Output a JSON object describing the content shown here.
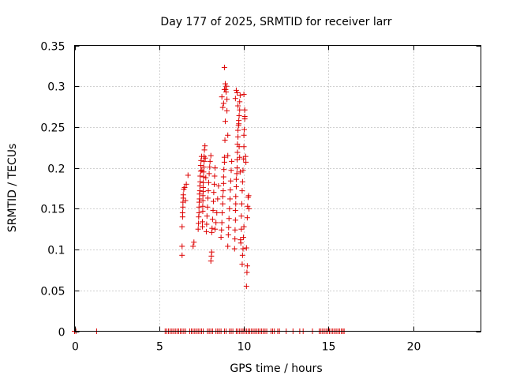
{
  "chart_data": {
    "type": "scatter",
    "title": "Day 177 of 2025, SRMTID for receiver larr",
    "xlabel": "GPS time / hours",
    "ylabel": "SRMTID / TECUs",
    "xlim": [
      0,
      24
    ],
    "ylim": [
      0,
      0.35
    ],
    "x_ticks": [
      0,
      5,
      10,
      15,
      20
    ],
    "y_ticks": [
      0,
      0.05,
      0.1,
      0.15,
      0.2,
      0.25,
      0.3,
      0.35
    ],
    "x_tick_labels": [
      "0",
      "5",
      "10",
      "15",
      "20"
    ],
    "y_tick_labels": [
      "0",
      "0.05",
      "0.1",
      "0.15",
      "0.2",
      "0.25",
      "0.3",
      "0.35"
    ],
    "grid": true,
    "marker": "+",
    "marker_color": "#dd0000",
    "series": [
      {
        "name": "SRMTID",
        "points": [
          [
            0.0,
            0
          ],
          [
            0.08,
            0
          ],
          [
            1.3,
            0
          ],
          [
            5.35,
            0
          ],
          [
            5.45,
            0
          ],
          [
            5.55,
            0
          ],
          [
            5.65,
            0
          ],
          [
            5.75,
            0
          ],
          [
            5.85,
            0
          ],
          [
            5.95,
            0
          ],
          [
            6.05,
            0
          ],
          [
            6.15,
            0
          ],
          [
            6.25,
            0
          ],
          [
            6.35,
            0
          ],
          [
            6.45,
            0
          ],
          [
            6.55,
            0
          ],
          [
            6.8,
            0
          ],
          [
            6.9,
            0
          ],
          [
            7.0,
            0
          ],
          [
            7.1,
            0
          ],
          [
            7.2,
            0
          ],
          [
            7.3,
            0
          ],
          [
            7.4,
            0
          ],
          [
            7.5,
            0
          ],
          [
            7.6,
            0
          ],
          [
            7.85,
            0
          ],
          [
            7.95,
            0
          ],
          [
            8.05,
            0
          ],
          [
            8.15,
            0
          ],
          [
            8.35,
            0
          ],
          [
            8.45,
            0
          ],
          [
            8.55,
            0
          ],
          [
            8.65,
            0
          ],
          [
            8.85,
            0
          ],
          [
            8.95,
            0
          ],
          [
            9.15,
            0
          ],
          [
            9.25,
            0
          ],
          [
            9.35,
            0
          ],
          [
            9.55,
            0
          ],
          [
            9.65,
            0
          ],
          [
            9.75,
            0
          ],
          [
            9.85,
            0
          ],
          [
            9.95,
            0
          ],
          [
            10.05,
            0
          ],
          [
            10.15,
            0
          ],
          [
            10.25,
            0
          ],
          [
            10.35,
            0
          ],
          [
            10.45,
            0
          ],
          [
            10.55,
            0
          ],
          [
            10.65,
            0
          ],
          [
            10.75,
            0
          ],
          [
            10.85,
            0
          ],
          [
            10.95,
            0
          ],
          [
            11.05,
            0
          ],
          [
            11.15,
            0
          ],
          [
            11.25,
            0
          ],
          [
            11.35,
            0
          ],
          [
            11.6,
            0
          ],
          [
            11.7,
            0
          ],
          [
            11.8,
            0
          ],
          [
            12.0,
            0
          ],
          [
            12.1,
            0
          ],
          [
            12.5,
            0
          ],
          [
            12.9,
            0
          ],
          [
            13.3,
            0
          ],
          [
            13.5,
            0
          ],
          [
            14.05,
            0
          ],
          [
            14.45,
            0
          ],
          [
            14.55,
            0
          ],
          [
            14.65,
            0
          ],
          [
            14.75,
            0
          ],
          [
            14.85,
            0
          ],
          [
            14.95,
            0
          ],
          [
            15.05,
            0
          ],
          [
            15.15,
            0
          ],
          [
            15.25,
            0
          ],
          [
            15.35,
            0
          ],
          [
            15.45,
            0
          ],
          [
            15.55,
            0
          ],
          [
            15.65,
            0
          ],
          [
            15.75,
            0
          ],
          [
            15.85,
            0
          ],
          [
            15.92,
            0
          ],
          [
            6.35,
            0.093
          ],
          [
            6.35,
            0.104
          ],
          [
            6.35,
            0.128
          ],
          [
            6.38,
            0.14
          ],
          [
            6.38,
            0.145
          ],
          [
            6.4,
            0.152
          ],
          [
            6.4,
            0.158
          ],
          [
            6.42,
            0.163
          ],
          [
            6.42,
            0.167
          ],
          [
            6.45,
            0.174
          ],
          [
            6.5,
            0.176
          ],
          [
            6.55,
            0.16
          ],
          [
            6.6,
            0.18
          ],
          [
            6.7,
            0.191
          ],
          [
            7.0,
            0.104
          ],
          [
            7.05,
            0.109
          ],
          [
            7.3,
            0.125
          ],
          [
            7.32,
            0.132
          ],
          [
            7.33,
            0.14
          ],
          [
            7.35,
            0.145
          ],
          [
            7.35,
            0.152
          ],
          [
            7.36,
            0.158
          ],
          [
            7.38,
            0.162
          ],
          [
            7.38,
            0.168
          ],
          [
            7.4,
            0.172
          ],
          [
            7.4,
            0.178
          ],
          [
            7.42,
            0.183
          ],
          [
            7.42,
            0.19
          ],
          [
            7.45,
            0.196
          ],
          [
            7.45,
            0.203
          ],
          [
            7.47,
            0.209
          ],
          [
            7.5,
            0.214
          ],
          [
            7.52,
            0.197
          ],
          [
            7.55,
            0.128
          ],
          [
            7.55,
            0.134
          ],
          [
            7.57,
            0.147
          ],
          [
            7.57,
            0.153
          ],
          [
            7.58,
            0.16
          ],
          [
            7.58,
            0.166
          ],
          [
            7.6,
            0.171
          ],
          [
            7.6,
            0.176
          ],
          [
            7.6,
            0.182
          ],
          [
            7.62,
            0.189
          ],
          [
            7.62,
            0.195
          ],
          [
            7.63,
            0.201
          ],
          [
            7.65,
            0.208
          ],
          [
            7.65,
            0.214
          ],
          [
            7.67,
            0.222
          ],
          [
            7.7,
            0.227
          ],
          [
            7.72,
            0.212
          ],
          [
            7.75,
            0.188
          ],
          [
            7.78,
            0.122
          ],
          [
            7.8,
            0.131
          ],
          [
            7.82,
            0.141
          ],
          [
            7.85,
            0.152
          ],
          [
            7.87,
            0.163
          ],
          [
            7.9,
            0.172
          ],
          [
            7.92,
            0.182
          ],
          [
            7.95,
            0.193
          ],
          [
            7.98,
            0.201
          ],
          [
            8.0,
            0.208
          ],
          [
            8.05,
            0.215
          ],
          [
            8.05,
            0.086
          ],
          [
            8.08,
            0.092
          ],
          [
            8.1,
            0.097
          ],
          [
            8.1,
            0.121
          ],
          [
            8.12,
            0.126
          ],
          [
            8.15,
            0.137
          ],
          [
            8.18,
            0.148
          ],
          [
            8.2,
            0.159
          ],
          [
            8.22,
            0.17
          ],
          [
            8.25,
            0.18
          ],
          [
            8.27,
            0.19
          ],
          [
            8.3,
            0.2
          ],
          [
            8.3,
            0.125
          ],
          [
            8.35,
            0.133
          ],
          [
            8.4,
            0.145
          ],
          [
            8.45,
            0.162
          ],
          [
            8.5,
            0.178
          ],
          [
            8.65,
            0.115
          ],
          [
            8.68,
            0.124
          ],
          [
            8.7,
            0.133
          ],
          [
            8.72,
            0.145
          ],
          [
            8.75,
            0.156
          ],
          [
            8.75,
            0.165
          ],
          [
            8.78,
            0.172
          ],
          [
            8.8,
            0.181
          ],
          [
            8.8,
            0.189
          ],
          [
            8.82,
            0.198
          ],
          [
            8.85,
            0.207
          ],
          [
            8.85,
            0.213
          ],
          [
            8.88,
            0.234
          ],
          [
            8.9,
            0.257
          ],
          [
            8.7,
            0.287
          ],
          [
            8.75,
            0.274
          ],
          [
            8.8,
            0.279
          ],
          [
            8.85,
            0.296
          ],
          [
            8.9,
            0.303
          ],
          [
            8.92,
            0.296
          ],
          [
            8.95,
            0.293
          ],
          [
            8.97,
            0.3
          ],
          [
            9.0,
            0.284
          ],
          [
            8.85,
            0.323
          ],
          [
            9.0,
            0.27
          ],
          [
            9.05,
            0.24
          ],
          [
            9.05,
            0.215
          ],
          [
            9.05,
            0.104
          ],
          [
            9.08,
            0.118
          ],
          [
            9.1,
            0.127
          ],
          [
            9.12,
            0.138
          ],
          [
            9.15,
            0.15
          ],
          [
            9.18,
            0.162
          ],
          [
            9.2,
            0.173
          ],
          [
            9.22,
            0.184
          ],
          [
            9.25,
            0.197
          ],
          [
            9.28,
            0.208
          ],
          [
            9.45,
            0.101
          ],
          [
            9.47,
            0.113
          ],
          [
            9.48,
            0.124
          ],
          [
            9.5,
            0.136
          ],
          [
            9.5,
            0.148
          ],
          [
            9.52,
            0.156
          ],
          [
            9.52,
            0.165
          ],
          [
            9.55,
            0.177
          ],
          [
            9.55,
            0.186
          ],
          [
            9.58,
            0.193
          ],
          [
            9.6,
            0.2
          ],
          [
            9.6,
            0.21
          ],
          [
            9.62,
            0.219
          ],
          [
            9.62,
            0.229
          ],
          [
            9.65,
            0.238
          ],
          [
            9.65,
            0.246
          ],
          [
            9.68,
            0.252
          ],
          [
            9.7,
            0.258
          ],
          [
            9.72,
            0.264
          ],
          [
            9.75,
            0.271
          ],
          [
            9.75,
            0.281
          ],
          [
            9.78,
            0.289
          ],
          [
            9.5,
            0.285
          ],
          [
            9.55,
            0.295
          ],
          [
            9.6,
            0.292
          ],
          [
            9.65,
            0.276
          ],
          [
            9.7,
            0.254
          ],
          [
            9.72,
            0.226
          ],
          [
            9.75,
            0.213
          ],
          [
            9.78,
            0.195
          ],
          [
            9.8,
            0.112
          ],
          [
            9.82,
            0.108
          ],
          [
            9.85,
            0.125
          ],
          [
            9.85,
            0.141
          ],
          [
            9.88,
            0.156
          ],
          [
            9.9,
            0.172
          ],
          [
            9.92,
            0.183
          ],
          [
            9.95,
            0.197
          ],
          [
            9.98,
            0.211
          ],
          [
            10.0,
            0.226
          ],
          [
            10.0,
            0.24
          ],
          [
            10.02,
            0.247
          ],
          [
            10.05,
            0.263
          ],
          [
            10.05,
            0.271
          ],
          [
            9.9,
            0.082
          ],
          [
            9.92,
            0.093
          ],
          [
            9.95,
            0.101
          ],
          [
            9.97,
            0.115
          ],
          [
            10.0,
            0.128
          ],
          [
            10.0,
            0.29
          ],
          [
            10.05,
            0.26
          ],
          [
            10.1,
            0.214
          ],
          [
            10.12,
            0.207
          ],
          [
            10.15,
            0.102
          ],
          [
            10.18,
            0.072
          ],
          [
            10.2,
            0.08
          ],
          [
            10.15,
            0.055
          ],
          [
            10.2,
            0.139
          ],
          [
            10.22,
            0.153
          ],
          [
            10.25,
            0.164
          ],
          [
            10.28,
            0.166
          ],
          [
            10.3,
            0.15
          ]
        ]
      }
    ]
  }
}
